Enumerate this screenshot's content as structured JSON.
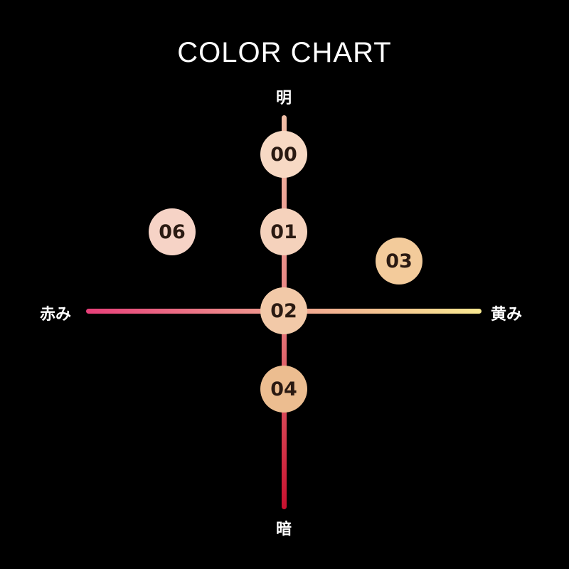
{
  "title": "COLOR CHART",
  "axes": {
    "top": "明",
    "bottom": "暗",
    "left": "赤み",
    "right": "黄み",
    "vertical_gradient": [
      "#f2c0a8",
      "#e88080",
      "#c8102e"
    ],
    "horizontal_gradient": [
      "#e8407a",
      "#f0a090",
      "#f8e890"
    ]
  },
  "shades": [
    {
      "label": "00",
      "color": "#f7d9c4"
    },
    {
      "label": "01",
      "color": "#f5d2bc"
    },
    {
      "label": "06",
      "color": "#f6d3c6"
    },
    {
      "label": "03",
      "color": "#f3cb9b"
    },
    {
      "label": "02",
      "color": "#f2c9a8"
    },
    {
      "label": "04",
      "color": "#ecbd90"
    }
  ]
}
